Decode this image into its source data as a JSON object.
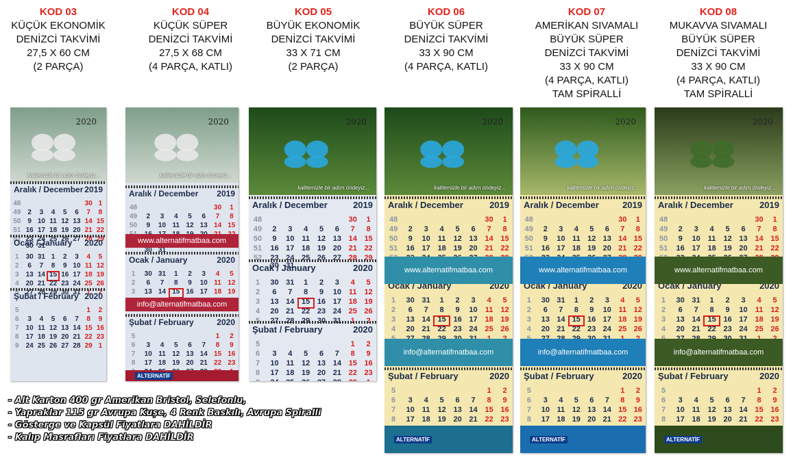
{
  "products": [
    {
      "kod": "KOD 03",
      "lines": [
        "KÜÇÜK EKONOMİK",
        "DENİZCİ TAKVİMİ",
        "27,5 X 60 CM",
        "(2 PARÇA)"
      ]
    },
    {
      "kod": "KOD 04",
      "lines": [
        "KÜÇÜK SÜPER",
        "DENİZCİ TAKVİMİ",
        "27,5 X 68 CM",
        "(4 PARÇA, KATLI)"
      ]
    },
    {
      "kod": "KOD 05",
      "lines": [
        "BÜYÜK EKONOMİK",
        "DENİZCİ TAKVİMİ",
        "33 X 71 CM",
        "(2 PARÇA)"
      ]
    },
    {
      "kod": "KOD 06",
      "lines": [
        "BÜYÜK SÜPER",
        "DENİZCİ TAKVİMİ",
        "33 X 90 CM",
        "(4 PARÇA, KATLI)"
      ]
    },
    {
      "kod": "KOD 07",
      "lines": [
        "AMERİKAN SIVAMALI",
        "BÜYÜK SÜPER",
        "DENİZCİ TAKVİMİ",
        "33 X 90 CM",
        "(4 PARÇA, KATLI)",
        "TAM SPİRALLİ"
      ]
    },
    {
      "kod": "KOD 08",
      "lines": [
        "MUKAVVA SIVAMALI",
        "BÜYÜK SÜPER",
        "DENİZCİ TAKVİMİ",
        "33 X 90 CM",
        "(4 PARÇA, KATLI)",
        "TAM SPİRALLİ"
      ]
    }
  ],
  "calendar": {
    "year_label": "2020",
    "slogan": "kalitemizle bir adım öndeyiz...",
    "months": [
      {
        "name": "Aralık / December",
        "year": "2019",
        "rows": [
          [
            "48",
            "",
            "",
            "",
            "",
            "",
            "30",
            "1"
          ],
          [
            "49",
            "2",
            "3",
            "4",
            "5",
            "6",
            "7",
            "8"
          ],
          [
            "50",
            "9",
            "10",
            "11",
            "12",
            "13",
            "14",
            "15"
          ],
          [
            "51",
            "16",
            "17",
            "18",
            "19",
            "20",
            "21",
            "22"
          ],
          [
            "52",
            "23 30",
            "24 31",
            "25",
            "26",
            "27",
            "28",
            "29"
          ]
        ]
      },
      {
        "name": "Ocak / January",
        "year": "2020",
        "rows": [
          [
            "1",
            "30",
            "31",
            "1",
            "2",
            "3",
            "4",
            "5"
          ],
          [
            "2",
            "6",
            "7",
            "8",
            "9",
            "10",
            "11",
            "12"
          ],
          [
            "3",
            "13",
            "14",
            "15",
            "16",
            "17",
            "18",
            "19"
          ],
          [
            "4",
            "20",
            "21",
            "22",
            "23",
            "24",
            "25",
            "26"
          ],
          [
            "5",
            "27",
            "28",
            "29",
            "30",
            "31",
            "1",
            "2"
          ]
        ]
      },
      {
        "name": "Şubat / February",
        "year": "2020",
        "rows": [
          [
            "5",
            "",
            "",
            "",
            "",
            "",
            "1",
            "2"
          ],
          [
            "6",
            "3",
            "4",
            "5",
            "6",
            "7",
            "8",
            "9"
          ],
          [
            "7",
            "10",
            "11",
            "12",
            "13",
            "14",
            "15",
            "16"
          ],
          [
            "8",
            "17",
            "18",
            "19",
            "20",
            "21",
            "22",
            "23"
          ],
          [
            "9",
            "24",
            "25",
            "26",
            "27",
            "28",
            "29",
            "1"
          ]
        ]
      }
    ],
    "web": "www.alternatifmatbaa.com",
    "email": "info@alternatifmatbaa.com",
    "logo": "ALTERNATİF",
    "colors": {
      "red": "#d71d1d",
      "navy": "#1b2a4a",
      "cream": "#f4e8b0"
    }
  },
  "notes": [
    "- Alt Karton 400 gr Amerikan Bristol, Selefonlu,",
    "- Yapraklar 115 gr Avrupa Kuşe, 4 Renk Baskılı, Avrupa Spiralli",
    "- Gösterge ve Kapsül Fiyatlara DAHİLDİR",
    "- Kalıp Masrafları Fiyatlara DAHİLDİR"
  ]
}
